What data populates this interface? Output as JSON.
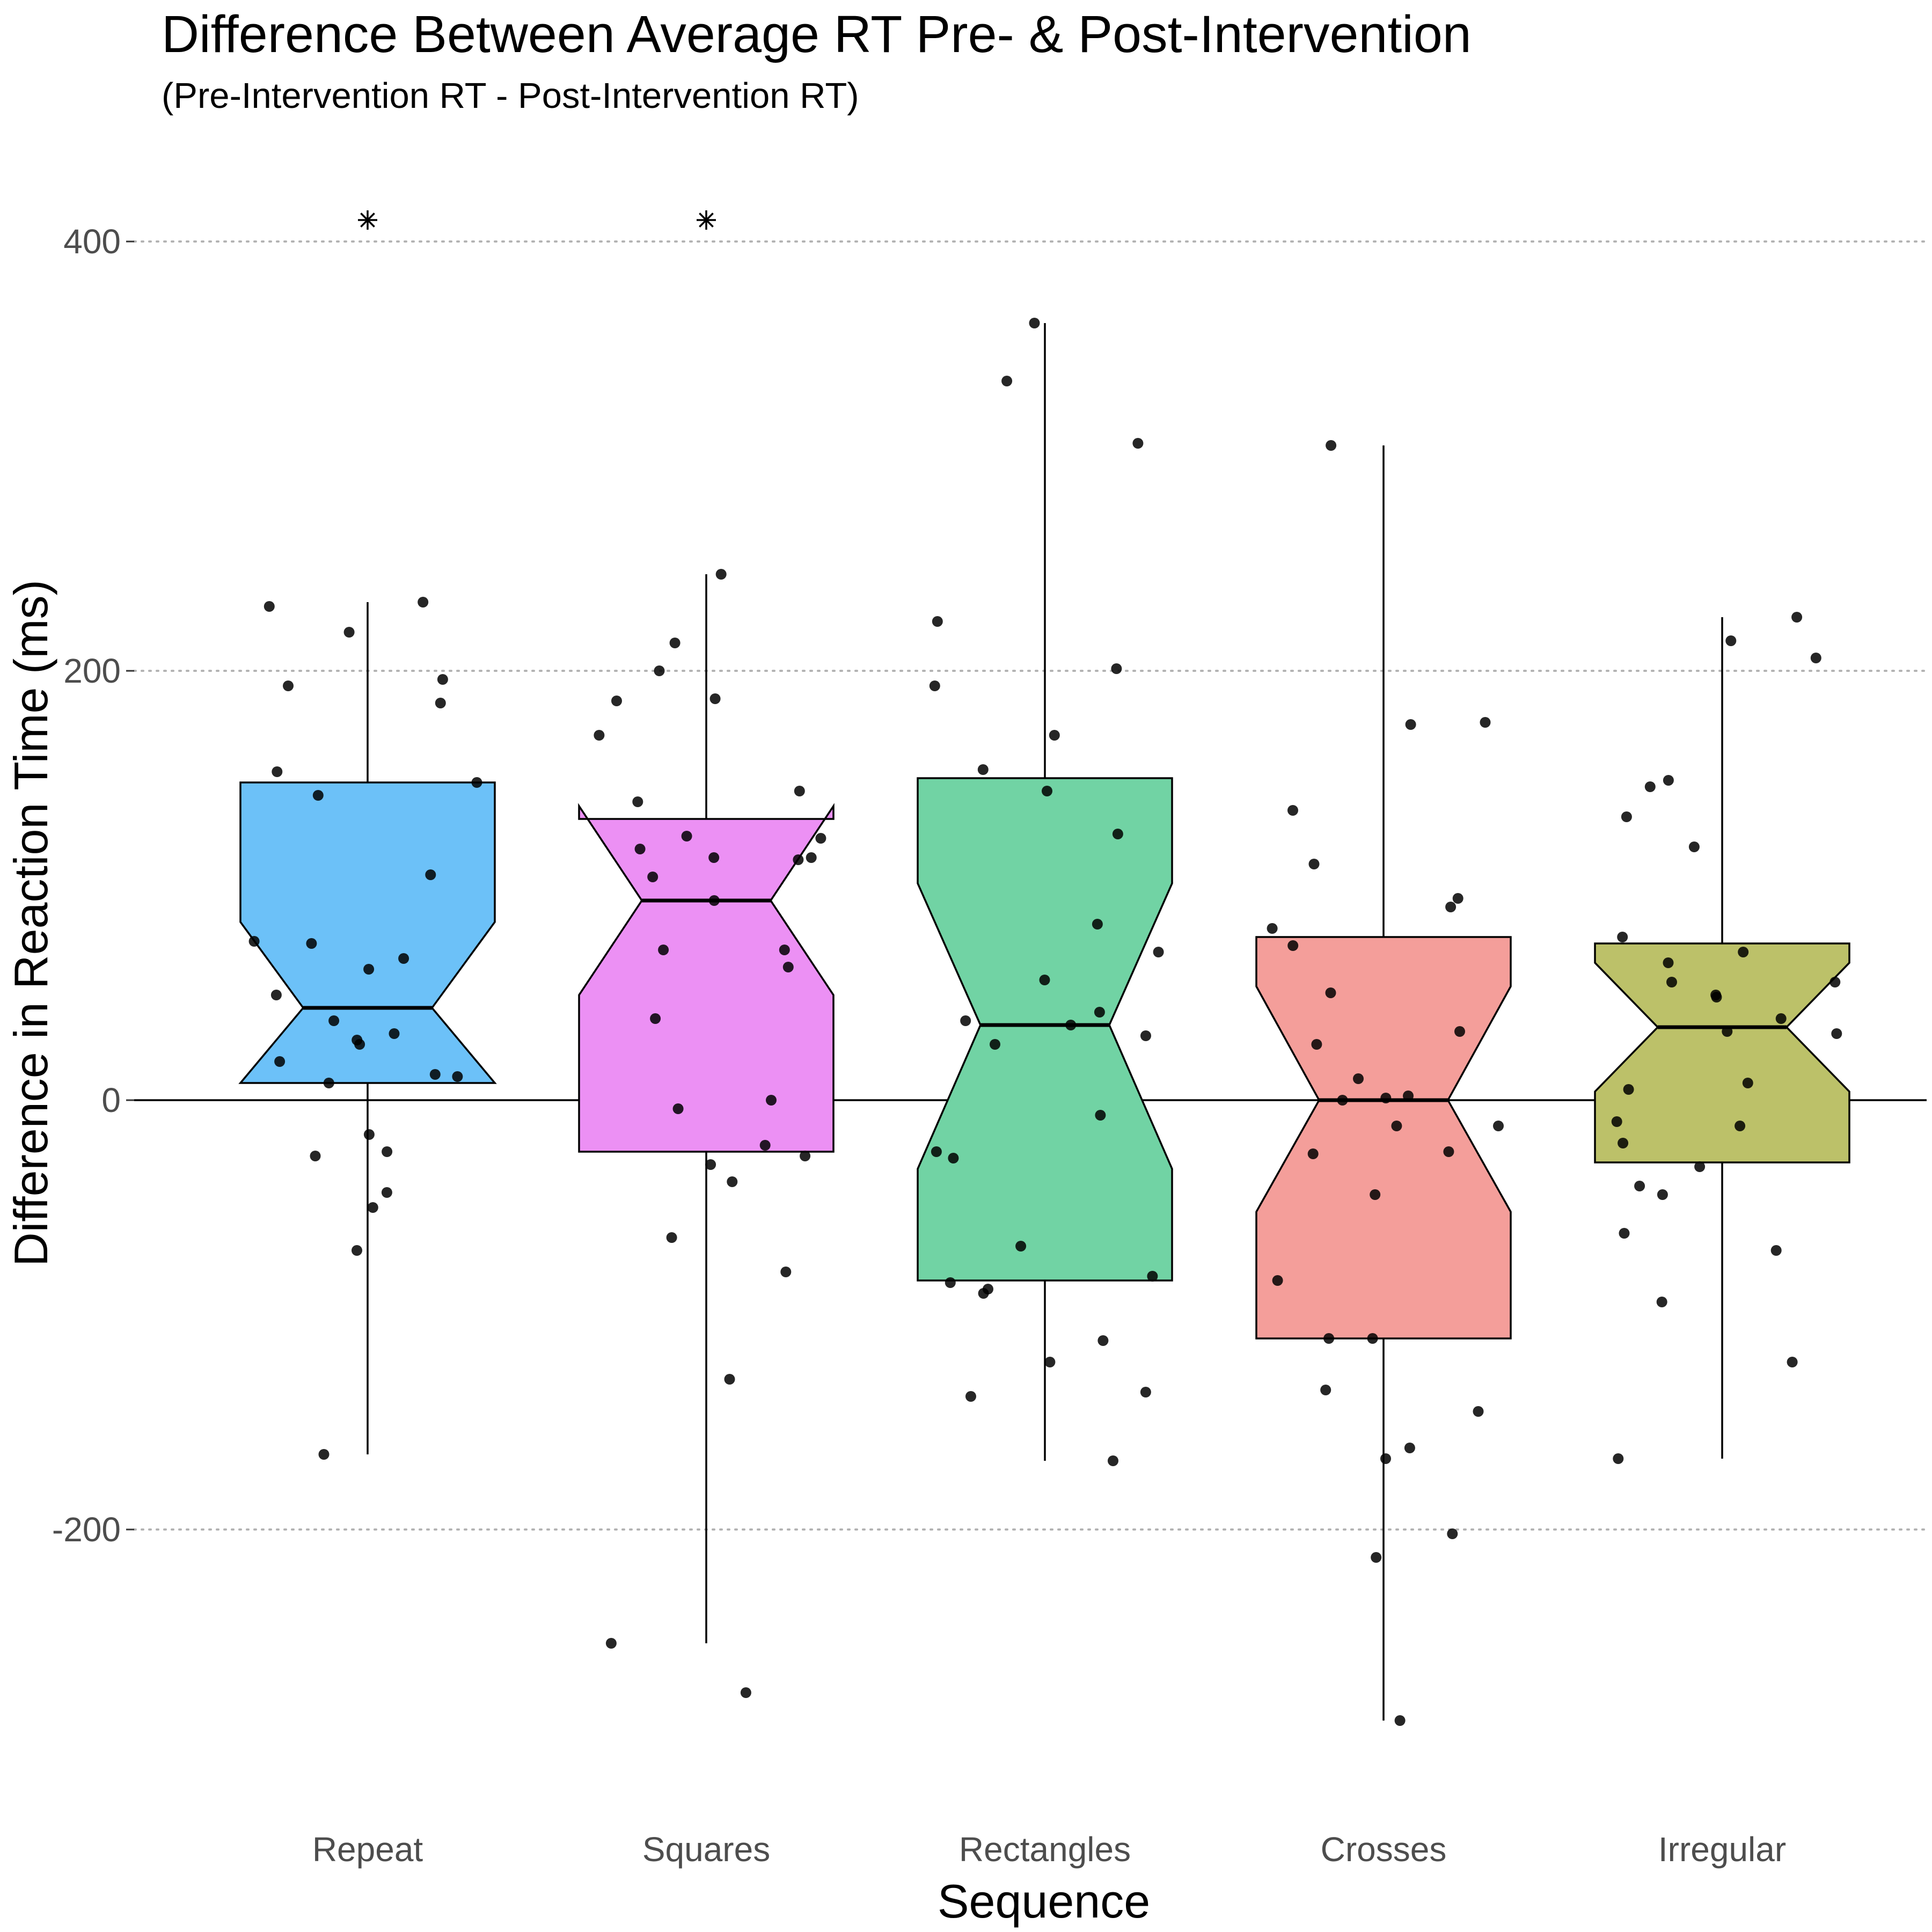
{
  "chart_data": {
    "type": "boxplot",
    "title": "Difference Between Average RT Pre- & Post-Intervention",
    "subtitle": "(Pre-Intervention RT - Post-Intervention RT)",
    "xlabel": "Sequence",
    "ylabel": "Difference in Reaction Time (ms)",
    "ylim": [
      -330,
      440
    ],
    "yticks": [
      -200,
      0,
      200,
      400
    ],
    "grid": "horizontal dotted at major y ticks",
    "reference_line": 0,
    "notched": true,
    "categories": [
      "Repeat",
      "Squares",
      "Rectangles",
      "Crosses",
      "Irregular"
    ],
    "colors": [
      "#6CC1F8",
      "#EC90F4",
      "#71D3A4",
      "#F49E9A",
      "#BCC169"
    ],
    "boxes": [
      {
        "name": "Repeat",
        "whisker_low": -165,
        "q1": 8,
        "median": 43,
        "q3": 148,
        "notch_low": 8,
        "notch_high": 83,
        "outlier_markers": [
          410
        ],
        "points": [
          232,
          230,
          218,
          196,
          193,
          185,
          153,
          148,
          142,
          105,
          74,
          73,
          66,
          61,
          49,
          37,
          31,
          28,
          26,
          18,
          12,
          11,
          8,
          -16,
          -24,
          -26,
          -43,
          -50,
          -70,
          -165
        ]
      },
      {
        "name": "Squares",
        "whisker_low": -253,
        "q1": -24,
        "median": 93,
        "q3": 131,
        "notch_low": 49,
        "notch_high": 137,
        "outlier_markers": [
          410
        ],
        "points": [
          245,
          213,
          200,
          187,
          186,
          170,
          144,
          139,
          123,
          122,
          117,
          113,
          113,
          112,
          104,
          93,
          70,
          70,
          62,
          38,
          0,
          -4,
          -21,
          -26,
          -30,
          -38,
          -64,
          -80,
          -130,
          -253,
          -276
        ]
      },
      {
        "name": "Rectangles",
        "whisker_low": -168,
        "q1": -84,
        "median": 35,
        "q3": 150,
        "notch_low": -32,
        "notch_high": 101,
        "outlier_markers": [],
        "points": [
          362,
          335,
          306,
          223,
          201,
          193,
          170,
          154,
          144,
          124,
          82,
          69,
          56,
          41,
          37,
          35,
          30,
          26,
          -7,
          -24,
          -27,
          -68,
          -82,
          -85,
          -88,
          -90,
          -112,
          -122,
          -136,
          -138,
          -168
        ]
      },
      {
        "name": "Crosses",
        "whisker_low": -289,
        "q1": -111,
        "median": 0,
        "q3": 76,
        "notch_low": -52,
        "notch_high": 53,
        "outlier_markers": [],
        "points": [
          305,
          176,
          175,
          135,
          110,
          94,
          90,
          80,
          72,
          50,
          32,
          26,
          10,
          2,
          1,
          0,
          -12,
          -12,
          -25,
          -24,
          -44,
          -84,
          -111,
          -111,
          -135,
          -145,
          -162,
          -167,
          -202,
          -213,
          -289
        ]
      },
      {
        "name": "Irregular",
        "whisker_low": -167,
        "q1": -29,
        "median": 34,
        "q3": 73,
        "notch_low": 4,
        "notch_high": 64,
        "outlier_markers": [],
        "points": [
          225,
          214,
          206,
          149,
          146,
          132,
          118,
          76,
          69,
          64,
          55,
          55,
          49,
          48,
          38,
          32,
          31,
          8,
          5,
          -10,
          -12,
          -20,
          -31,
          -40,
          -44,
          -62,
          -70,
          -94,
          -122,
          -167
        ]
      }
    ]
  }
}
